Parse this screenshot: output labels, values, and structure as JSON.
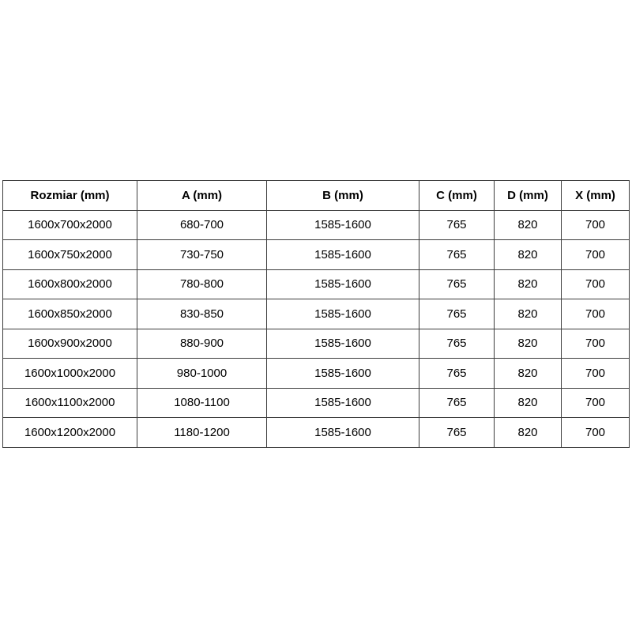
{
  "chart_data": {
    "type": "table",
    "title": "",
    "headers": [
      "Rozmiar (mm)",
      "A (mm)",
      "B (mm)",
      "C (mm)",
      "D (mm)",
      "X (mm)"
    ],
    "rows": [
      [
        "1600x700x2000",
        "680-700",
        "1585-1600",
        "765",
        "820",
        "700"
      ],
      [
        "1600x750x2000",
        "730-750",
        "1585-1600",
        "765",
        "820",
        "700"
      ],
      [
        "1600x800x2000",
        "780-800",
        "1585-1600",
        "765",
        "820",
        "700"
      ],
      [
        "1600x850x2000",
        "830-850",
        "1585-1600",
        "765",
        "820",
        "700"
      ],
      [
        "1600x900x2000",
        "880-900",
        "1585-1600",
        "765",
        "820",
        "700"
      ],
      [
        "1600x1000x2000",
        "980-1000",
        "1585-1600",
        "765",
        "820",
        "700"
      ],
      [
        "1600x1100x2000",
        "1080-1100",
        "1585-1600",
        "765",
        "820",
        "700"
      ],
      [
        "1600x1200x2000",
        "1180-1200",
        "1585-1600",
        "765",
        "820",
        "700"
      ]
    ],
    "layout": {
      "grid": true,
      "border_color": "#3d3d3d",
      "text_color": "#000000",
      "background_color": "#ffffff",
      "header_bold": true
    }
  }
}
